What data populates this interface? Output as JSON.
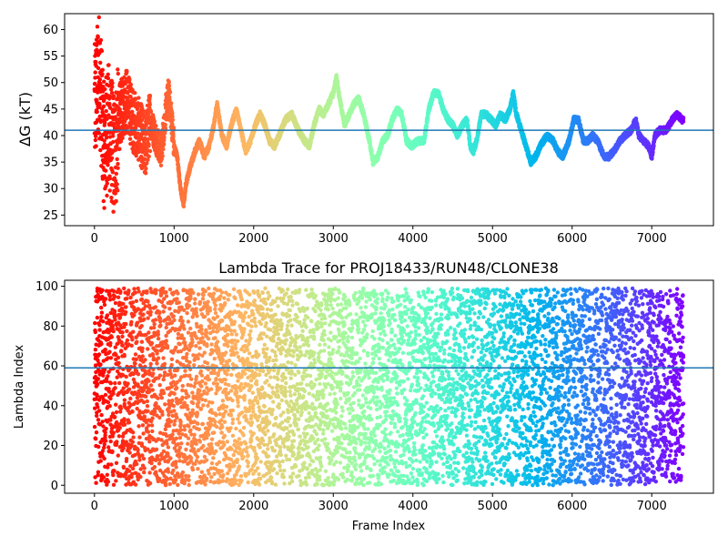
{
  "chart_data": [
    {
      "type": "scatter",
      "title": "",
      "xlabel": "",
      "ylabel": "ΔG (kT)",
      "xlim": [
        -375,
        7775
      ],
      "ylim": [
        23,
        63
      ],
      "xticks": [
        0,
        1000,
        2000,
        3000,
        4000,
        5000,
        6000,
        7000
      ],
      "yticks": [
        25,
        30,
        35,
        40,
        45,
        50,
        55,
        60
      ],
      "hline": 41,
      "hline_color": "#1f77b4",
      "colormap": "rainbow",
      "point_count": 7400,
      "trace_anchors": [
        [
          0,
          45
        ],
        [
          60,
          52
        ],
        [
          120,
          38
        ],
        [
          180,
          42
        ],
        [
          250,
          36
        ],
        [
          320,
          44
        ],
        [
          400,
          47
        ],
        [
          480,
          43
        ],
        [
          560,
          41
        ],
        [
          640,
          38
        ],
        [
          700,
          43
        ],
        [
          760,
          40
        ],
        [
          840,
          37
        ],
        [
          900,
          45
        ],
        [
          930,
          48
        ],
        [
          970,
          43
        ],
        [
          1000,
          38
        ],
        [
          1040,
          36
        ],
        [
          1080,
          30
        ],
        [
          1120,
          27
        ],
        [
          1150,
          31
        ],
        [
          1200,
          34
        ],
        [
          1260,
          37
        ],
        [
          1320,
          39
        ],
        [
          1380,
          36
        ],
        [
          1440,
          38
        ],
        [
          1500,
          42
        ],
        [
          1540,
          46
        ],
        [
          1600,
          40
        ],
        [
          1660,
          38
        ],
        [
          1720,
          42
        ],
        [
          1780,
          45
        ],
        [
          1840,
          41
        ],
        [
          1900,
          37
        ],
        [
          1960,
          39
        ],
        [
          2020,
          42
        ],
        [
          2080,
          44
        ],
        [
          2140,
          42
        ],
        [
          2200,
          39
        ],
        [
          2260,
          38
        ],
        [
          2320,
          40
        ],
        [
          2400,
          43
        ],
        [
          2480,
          44
        ],
        [
          2560,
          41
        ],
        [
          2640,
          39
        ],
        [
          2700,
          38
        ],
        [
          2760,
          42
        ],
        [
          2820,
          45
        ],
        [
          2880,
          44
        ],
        [
          2940,
          46
        ],
        [
          3000,
          48
        ],
        [
          3040,
          51
        ],
        [
          3080,
          47
        ],
        [
          3140,
          42
        ],
        [
          3200,
          44
        ],
        [
          3260,
          46
        ],
        [
          3320,
          47
        ],
        [
          3380,
          44
        ],
        [
          3440,
          40
        ],
        [
          3500,
          35
        ],
        [
          3560,
          36
        ],
        [
          3620,
          39
        ],
        [
          3680,
          40
        ],
        [
          3740,
          43
        ],
        [
          3800,
          45
        ],
        [
          3860,
          44
        ],
        [
          3920,
          39
        ],
        [
          3980,
          38
        ],
        [
          4060,
          39
        ],
        [
          4140,
          39
        ],
        [
          4200,
          45
        ],
        [
          4260,
          48
        ],
        [
          4320,
          48
        ],
        [
          4380,
          45
        ],
        [
          4440,
          43
        ],
        [
          4500,
          42
        ],
        [
          4560,
          40
        ],
        [
          4620,
          42
        ],
        [
          4680,
          43
        ],
        [
          4720,
          38
        ],
        [
          4760,
          37
        ],
        [
          4800,
          39
        ],
        [
          4860,
          44
        ],
        [
          4920,
          44
        ],
        [
          4980,
          43
        ],
        [
          5040,
          42
        ],
        [
          5100,
          44
        ],
        [
          5160,
          43
        ],
        [
          5220,
          45
        ],
        [
          5260,
          48
        ],
        [
          5300,
          44
        ],
        [
          5360,
          41
        ],
        [
          5420,
          38
        ],
        [
          5480,
          35
        ],
        [
          5540,
          36
        ],
        [
          5600,
          38
        ],
        [
          5680,
          40
        ],
        [
          5760,
          39
        ],
        [
          5820,
          37
        ],
        [
          5880,
          36
        ],
        [
          5960,
          39
        ],
        [
          6020,
          43
        ],
        [
          6080,
          43
        ],
        [
          6140,
          39
        ],
        [
          6200,
          39
        ],
        [
          6260,
          40
        ],
        [
          6320,
          39
        ],
        [
          6400,
          36
        ],
        [
          6460,
          36
        ],
        [
          6520,
          37
        ],
        [
          6600,
          39
        ],
        [
          6660,
          40
        ],
        [
          6740,
          41
        ],
        [
          6800,
          43
        ],
        [
          6840,
          40
        ],
        [
          6900,
          39
        ],
        [
          6960,
          38
        ],
        [
          7000,
          36
        ],
        [
          7040,
          40
        ],
        [
          7100,
          41
        ],
        [
          7180,
          41
        ],
        [
          7260,
          43
        ],
        [
          7320,
          44
        ],
        [
          7380,
          43
        ]
      ]
    },
    {
      "type": "scatter",
      "title": "Lambda Trace for PROJ18433/RUN48/CLONE38",
      "xlabel": "Frame Index",
      "ylabel": "Lambda Index",
      "xlim": [
        -375,
        7775
      ],
      "ylim": [
        -4,
        103
      ],
      "xticks": [
        0,
        1000,
        2000,
        3000,
        4000,
        5000,
        6000,
        7000
      ],
      "yticks": [
        0,
        20,
        40,
        60,
        80,
        100
      ],
      "hline": 59,
      "hline_color": "#1f77b4",
      "colormap": "rainbow",
      "point_count": 7400,
      "value_range": [
        0,
        99
      ]
    }
  ]
}
